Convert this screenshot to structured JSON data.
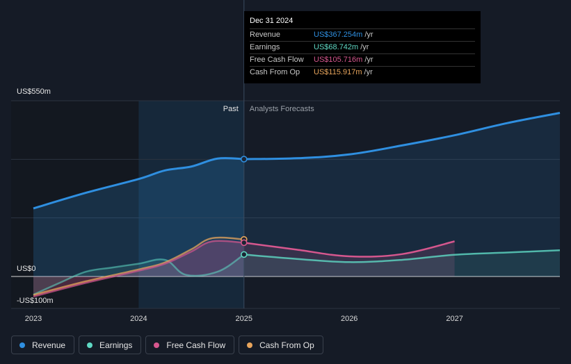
{
  "tooltip": {
    "date": "Dec 31 2024",
    "rows": [
      {
        "label": "Revenue",
        "value": "US$367.254m",
        "unit": "/yr",
        "color": "#2f8fe0"
      },
      {
        "label": "Earnings",
        "value": "US$68.742m",
        "unit": "/yr",
        "color": "#5fd9c4"
      },
      {
        "label": "Free Cash Flow",
        "value": "US$105.716m",
        "unit": "/yr",
        "color": "#d6578e"
      },
      {
        "label": "Cash From Op",
        "value": "US$115.917m",
        "unit": "/yr",
        "color": "#e8a55c"
      }
    ]
  },
  "legend": [
    {
      "label": "Revenue",
      "color": "#2f8fe0"
    },
    {
      "label": "Earnings",
      "color": "#5fd9c4"
    },
    {
      "label": "Free Cash Flow",
      "color": "#d6578e"
    },
    {
      "label": "Cash From Op",
      "color": "#e8a55c"
    }
  ],
  "chart_data": {
    "type": "line",
    "title": "",
    "xlabel": "",
    "ylabel": "",
    "x_ticks": [
      "2023",
      "2024",
      "2025",
      "2026",
      "2027"
    ],
    "y_ticks": [
      {
        "label": "US$550m",
        "value": 550
      },
      {
        "label": "US$0",
        "value": 0
      },
      {
        "label": "-US$100m",
        "value": -100
      }
    ],
    "ylim": [
      -100,
      550
    ],
    "xlim": [
      2023.0,
      2028.0
    ],
    "past_label": "Past",
    "forecast_label": "Analysts Forecasts",
    "past_end": 2025.0,
    "series": [
      {
        "name": "Revenue",
        "color": "#2f8fe0",
        "past": [
          [
            2023.0,
            213
          ],
          [
            2023.5,
            262
          ],
          [
            2024.0,
            305
          ],
          [
            2024.25,
            332
          ],
          [
            2024.5,
            344
          ],
          [
            2024.75,
            369
          ],
          [
            2025.0,
            367.254
          ]
        ],
        "forecast": [
          [
            2025.0,
            367.254
          ],
          [
            2025.5,
            370
          ],
          [
            2026.0,
            382
          ],
          [
            2026.5,
            410
          ],
          [
            2027.0,
            442
          ],
          [
            2027.5,
            480
          ],
          [
            2028.0,
            512
          ]
        ]
      },
      {
        "name": "Earnings",
        "color": "#5fd9c4",
        "past": [
          [
            2023.0,
            -57
          ],
          [
            2023.25,
            -20
          ],
          [
            2023.5,
            15
          ],
          [
            2023.75,
            28
          ],
          [
            2024.0,
            40
          ],
          [
            2024.25,
            52
          ],
          [
            2024.45,
            5
          ],
          [
            2024.75,
            15
          ],
          [
            2025.0,
            68.742
          ]
        ],
        "forecast": [
          [
            2025.0,
            68.742
          ],
          [
            2025.5,
            55
          ],
          [
            2026.0,
            45
          ],
          [
            2026.5,
            52
          ],
          [
            2027.0,
            68
          ],
          [
            2027.5,
            75
          ],
          [
            2028.0,
            82
          ]
        ]
      },
      {
        "name": "Free Cash Flow",
        "color": "#d6578e",
        "past": [
          [
            2023.0,
            -63
          ],
          [
            2023.5,
            -20
          ],
          [
            2024.0,
            18
          ],
          [
            2024.25,
            40
          ],
          [
            2024.5,
            78
          ],
          [
            2024.7,
            110
          ],
          [
            2025.0,
            105.716
          ]
        ],
        "forecast": [
          [
            2025.0,
            105.716
          ],
          [
            2025.5,
            84
          ],
          [
            2026.0,
            63
          ],
          [
            2026.5,
            70
          ],
          [
            2027.0,
            110
          ]
        ]
      },
      {
        "name": "Cash From Op",
        "color": "#e8a55c",
        "past": [
          [
            2023.0,
            -58
          ],
          [
            2023.5,
            -15
          ],
          [
            2024.0,
            22
          ],
          [
            2024.25,
            44
          ],
          [
            2024.5,
            85
          ],
          [
            2024.7,
            120
          ],
          [
            2025.0,
            115.917
          ]
        ],
        "forecast": []
      }
    ]
  }
}
